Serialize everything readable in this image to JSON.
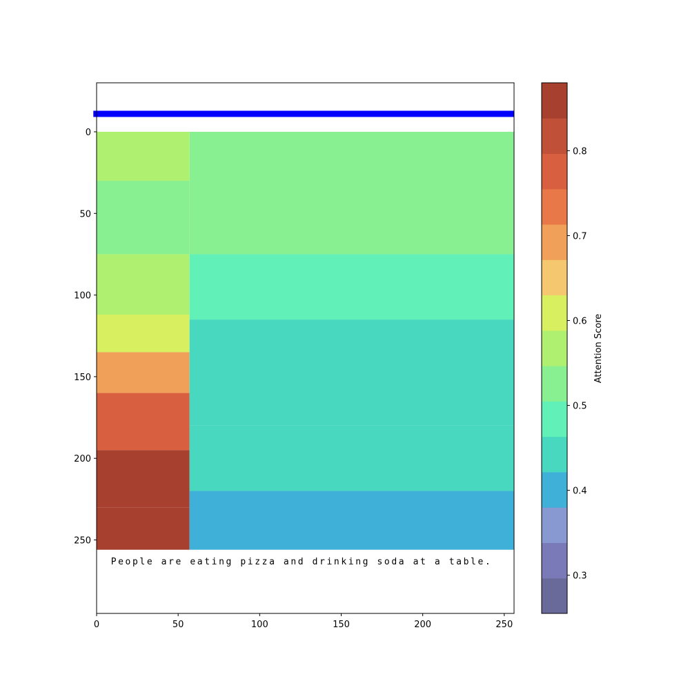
{
  "chart_data": {
    "type": "heatmap",
    "title": "",
    "caption": "People are eating pizza and drinking soda at a table.",
    "tokens": [
      "People",
      "are",
      "eating",
      "pizza",
      "and",
      "drinking",
      "soda",
      "at",
      "a",
      "table."
    ],
    "xlim": [
      0,
      256
    ],
    "ylim": [
      295,
      -30
    ],
    "image_extent": [
      0,
      256,
      256,
      0
    ],
    "x_ticks": [
      0,
      50,
      100,
      150,
      200,
      250
    ],
    "y_ticks": [
      0,
      50,
      100,
      150,
      200,
      250
    ],
    "marker_line": {
      "y": -11,
      "x_range": [
        -2,
        256
      ],
      "color": "#0000ff"
    },
    "attention_regions": [
      {
        "x": [
          0,
          57
        ],
        "y": [
          0,
          30
        ],
        "score": 0.55
      },
      {
        "x": [
          0,
          57
        ],
        "y": [
          30,
          75
        ],
        "score": 0.52
      },
      {
        "x": [
          0,
          57
        ],
        "y": [
          75,
          112
        ],
        "score": 0.57
      },
      {
        "x": [
          0,
          57
        ],
        "y": [
          112,
          135
        ],
        "score": 0.62
      },
      {
        "x": [
          0,
          57
        ],
        "y": [
          135,
          160
        ],
        "score": 0.7
      },
      {
        "x": [
          0,
          57
        ],
        "y": [
          160,
          195
        ],
        "score": 0.78
      },
      {
        "x": [
          0,
          57
        ],
        "y": [
          195,
          230
        ],
        "score": 0.84
      },
      {
        "x": [
          0,
          57
        ],
        "y": [
          230,
          256
        ],
        "score": 0.88
      },
      {
        "x": [
          57,
          256
        ],
        "y": [
          0,
          75
        ],
        "score": 0.51
      },
      {
        "x": [
          57,
          256
        ],
        "y": [
          75,
          115
        ],
        "score": 0.49
      },
      {
        "x": [
          57,
          256
        ],
        "y": [
          115,
          180
        ],
        "score": 0.46
      },
      {
        "x": [
          57,
          256
        ],
        "y": [
          180,
          220
        ],
        "score": 0.44
      },
      {
        "x": [
          57,
          256
        ],
        "y": [
          220,
          256
        ],
        "score": 0.41
      }
    ],
    "colorbar": {
      "label": "Attention Score",
      "range": [
        0.255,
        0.88
      ],
      "ticks": [
        0.3,
        0.4,
        0.5,
        0.6,
        0.7,
        0.8
      ],
      "colors": [
        "#6a6a9a",
        "#7a7ab8",
        "#8898d0",
        "#3fb0d8",
        "#48d8c0",
        "#60f0b8",
        "#88f090",
        "#b0f070",
        "#d8f060",
        "#f5c870",
        "#f0a058",
        "#e87848",
        "#d86040",
        "#c05038",
        "#a84030"
      ]
    }
  }
}
